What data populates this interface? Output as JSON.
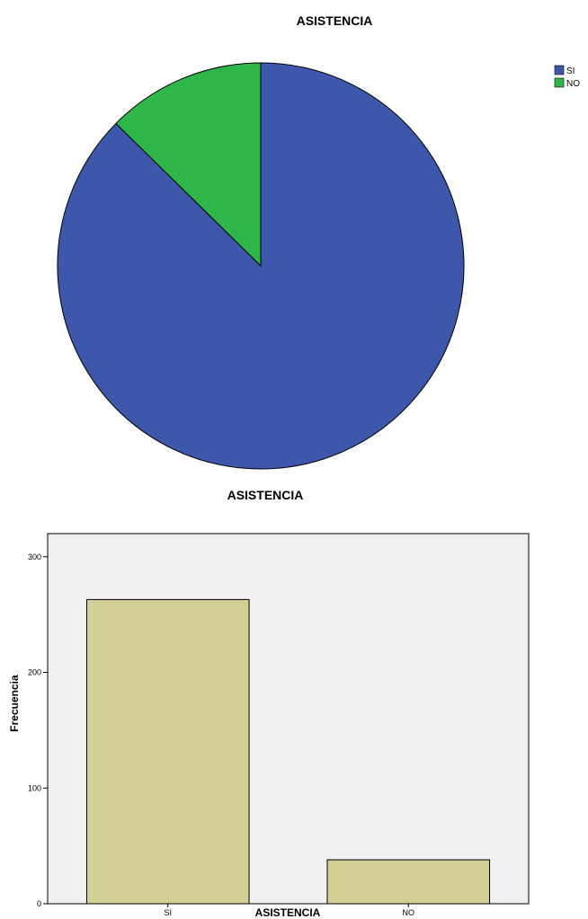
{
  "chart_data": [
    {
      "type": "pie",
      "title": "ASISTENCIA",
      "footer_label": "ASISTENCIA",
      "categories": [
        "SI",
        "NO"
      ],
      "values": [
        263,
        38
      ],
      "colors": [
        "#3D58AB",
        "#2EB64A"
      ],
      "legend": {
        "position": "top-right",
        "entries": [
          "SI",
          "NO"
        ]
      }
    },
    {
      "type": "bar",
      "categories": [
        "SI",
        "NO"
      ],
      "values": [
        263,
        38
      ],
      "xlabel": "ASISTENCIA",
      "ylabel": "Frecuencia",
      "ylim": [
        0,
        320
      ],
      "yticks": [
        "0",
        "100",
        "200",
        "300"
      ],
      "bar_color": "#D3CF97",
      "plot_background": "#F0F0F0",
      "grid": false
    }
  ]
}
